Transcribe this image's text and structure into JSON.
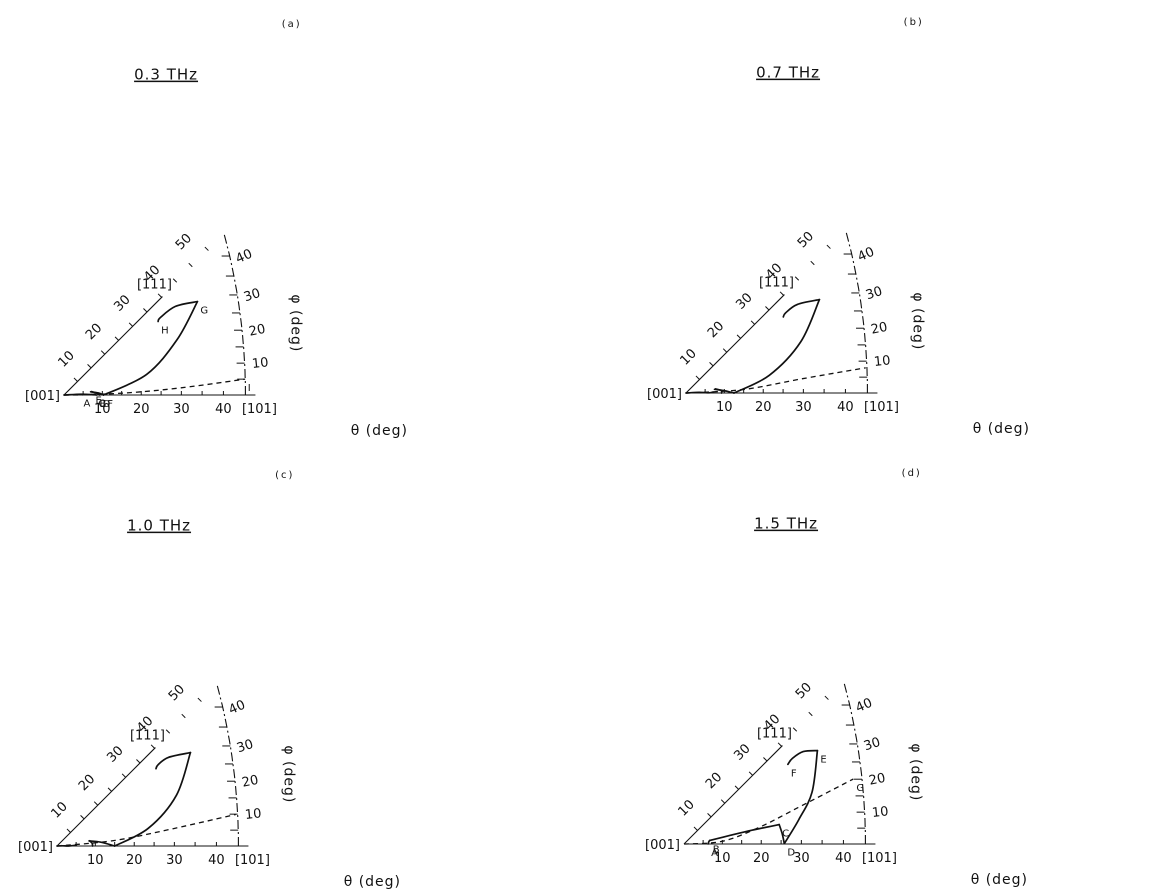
{
  "labels": {
    "origin": "[001]",
    "end_101": "[101]",
    "end_111": "[111]",
    "theta_axis": "θ (deg)",
    "phi_axis": "φ (deg)"
  },
  "theta_ticks": [
    "10",
    "20",
    "30",
    "40"
  ],
  "diag_ticks": [
    "10",
    "20",
    "30",
    "40",
    "50"
  ],
  "phi_ticks": [
    "10",
    "20",
    "30",
    "40"
  ],
  "panels": [
    {
      "id": "a",
      "panel_label": "(a)",
      "title": "0.3 THz",
      "points": [
        {
          "label": "A",
          "theta": 4.3,
          "phi": 1.5
        },
        {
          "label": "B",
          "theta": 8.5,
          "phi": -0.3
        },
        {
          "label": "C",
          "theta": 8.2,
          "phi": 0.5
        },
        {
          "label": "D",
          "theta": 9.3,
          "phi": -0.3
        },
        {
          "label": "E",
          "theta": 7.5,
          "phi": 7.0
        },
        {
          "label": "F",
          "theta": 10.5,
          "phi": -0.3
        },
        {
          "label": "G",
          "theta": 40.8,
          "phi": 35.0
        },
        {
          "label": "H",
          "theta": 30.5,
          "phi": 38.0
        },
        {
          "label": "I",
          "theta": 45.0,
          "phi": 5.0
        }
      ]
    },
    {
      "id": "b",
      "panel_label": "(b)",
      "title": "0.7 THz",
      "points": []
    },
    {
      "id": "c",
      "panel_label": "(c)",
      "title": "1.0 THz",
      "points": []
    },
    {
      "id": "d",
      "panel_label": "(d)",
      "title": "1.5 THz",
      "points": [
        {
          "label": "A",
          "theta": 6.3,
          "phi": 0.2
        },
        {
          "label": "B",
          "theta": 6.8,
          "phi": 8.0
        },
        {
          "label": "C",
          "theta": 25.0,
          "phi": 11.5
        },
        {
          "label": "D",
          "theta": 25.8,
          "phi": 0.2
        },
        {
          "label": "E",
          "theta": 40.8,
          "phi": 35.0
        },
        {
          "label": "F",
          "theta": 33.3,
          "phi": 37.5
        },
        {
          "label": "G",
          "theta": 45.0,
          "phi": 21.0
        }
      ]
    }
  ],
  "chart_data": [
    {
      "type": "line",
      "panel": "(a)",
      "title": "0.3 THz",
      "xlabel": "θ (deg)",
      "ylabel": "φ (deg)",
      "x_range": [
        0,
        45
      ],
      "series": [
        {
          "segments": [
            [
              [
                0,
                0
              ],
              [
                4.5,
                2.5
              ],
              [
                8.0,
                0.3
              ],
              [
                8.5,
                0
              ]
            ],
            [
              [
                7.0,
                6.8
              ],
              [
                9.0,
                3.5
              ],
              [
                10.3,
                0
              ]
            ],
            [
              [
                7.2,
                7.0
              ],
              [
                8.6,
                3.0
              ],
              [
                9.3,
                0
              ]
            ],
            [
              [
                10.3,
                0
              ],
              [
                22,
                14
              ],
              [
                32,
                26
              ],
              [
                40.8,
                35.0
              ]
            ],
            [
              [
                40.8,
                35.0
              ],
              [
                36,
                38.5
              ],
              [
                31.5,
                38.8
              ],
              [
                30.5,
                38.0
              ]
            ]
          ]
        },
        {
          "dashed": true,
          "points": [
            [
              0,
              0
            ],
            [
              15,
              1.8
            ],
            [
              30,
              3.5
            ],
            [
              45,
              5.0
            ]
          ]
        },
        {
          "dashed": true,
          "points": [
            [
              0,
              0
            ],
            [
              5,
              0.2
            ],
            [
              9,
              0.3
            ]
          ]
        }
      ]
    },
    {
      "type": "line",
      "panel": "(b)",
      "title": "0.7 THz",
      "xlabel": "θ (deg)",
      "ylabel": "φ (deg)",
      "x_range": [
        0,
        45
      ],
      "series": [
        {
          "segments": [
            [
              [
                0,
                0
              ],
              [
                3.5,
                2.8
              ],
              [
                6.0,
                0.5
              ],
              [
                7.0,
                2.0
              ]
            ],
            [
              [
                7.5,
                7.5
              ],
              [
                10.0,
                3.5
              ],
              [
                12.5,
                0
              ]
            ],
            [
              [
                7.8,
                7.8
              ],
              [
                9.2,
                4.0
              ],
              [
                9.3,
                0
              ]
            ],
            [
              [
                12.5,
                0
              ],
              [
                22,
                12
              ],
              [
                32,
                24
              ],
              [
                40.8,
                35.0
              ]
            ],
            [
              [
                40.8,
                35.0
              ],
              [
                36,
                38.5
              ],
              [
                32.5,
                38.8
              ],
              [
                31.5,
                38.0
              ]
            ]
          ]
        },
        {
          "dashed": true,
          "points": [
            [
              0,
              0
            ],
            [
              15,
              3.5
            ],
            [
              30,
              7.0
            ],
            [
              45,
              8.0
            ]
          ]
        },
        {
          "dashed": true,
          "points": [
            [
              0,
              0
            ],
            [
              5,
              1.0
            ],
            [
              7,
              2.0
            ]
          ]
        }
      ]
    },
    {
      "type": "line",
      "panel": "(c)",
      "title": "1.0 THz",
      "xlabel": "θ (deg)",
      "ylabel": "φ (deg)",
      "x_range": [
        0,
        45
      ],
      "series": [
        {
          "segments": [
            [
              [
                0,
                0
              ],
              [
                1.5,
                1.5
              ],
              [
                3.0,
                0
              ],
              [
                5.0,
                2.3
              ]
            ],
            [
              [
                8.5,
                9.0
              ],
              [
                11.5,
                5.0
              ],
              [
                15.0,
                0
              ]
            ],
            [
              [
                8.6,
                9.0
              ],
              [
                9.2,
                4.5
              ],
              [
                9.3,
                0
              ]
            ],
            [
              [
                15.0,
                0
              ],
              [
                24,
                11
              ],
              [
                33,
                23
              ],
              [
                40.8,
                35.0
              ]
            ],
            [
              [
                40.8,
                35.0
              ],
              [
                36,
                38.5
              ],
              [
                33,
                38.8
              ],
              [
                32.0,
                38.0
              ]
            ]
          ]
        },
        {
          "dashed": true,
          "points": [
            [
              0,
              0
            ],
            [
              15,
              5.5
            ],
            [
              30,
              8.5
            ],
            [
              45,
              10.0
            ]
          ]
        }
      ]
    },
    {
      "type": "line",
      "panel": "(d)",
      "title": "1.5 THz",
      "xlabel": "θ (deg)",
      "ylabel": "φ (deg)",
      "x_range": [
        0,
        45
      ],
      "series": [
        {
          "segments": [
            [
              [
                6.3,
                0.2
              ],
              [
                6.5,
                5.0
              ],
              [
                6.8,
                8.0
              ]
            ],
            [
              [
                6.8,
                8.0
              ],
              [
                12,
                10.5
              ],
              [
                18,
                11.5
              ],
              [
                25.0,
                11.5
              ]
            ],
            [
              [
                25.0,
                11.5
              ],
              [
                25.4,
                6.0
              ],
              [
                25.8,
                0.2
              ]
            ],
            [
              [
                25.8,
                0.2
              ],
              [
                30,
                12
              ],
              [
                35,
                22
              ],
              [
                40.8,
                35.0
              ]
            ],
            [
              [
                40.8,
                35.0
              ],
              [
                38,
                37.8
              ],
              [
                35,
                38.3
              ],
              [
                33.3,
                37.5
              ]
            ]
          ]
        },
        {
          "dashed": true,
          "points": [
            [
              0,
              0
            ],
            [
              10,
              4.0
            ],
            [
              20,
              12.5
            ],
            [
              30,
              17.5
            ],
            [
              45,
              21.0
            ]
          ]
        }
      ]
    }
  ]
}
